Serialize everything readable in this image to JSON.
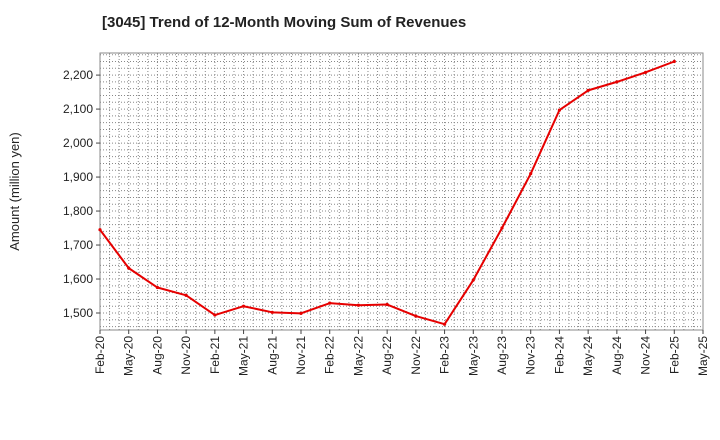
{
  "title": "[3045]  Trend of 12-Month Moving Sum of Revenues",
  "colors": {
    "line": "#e60000",
    "grid": "#888888",
    "plot_border": "#888888"
  },
  "chart_data": {
    "type": "line",
    "title": "[3045]  Trend of 12-Month Moving Sum of Revenues",
    "xlabel": "",
    "ylabel": "Amount (million yen)",
    "ylim": [
      1450,
      2265
    ],
    "yticks": [
      1500,
      1600,
      1700,
      1800,
      1900,
      2000,
      2100,
      2200
    ],
    "ytick_labels": [
      "1,500",
      "1,600",
      "1,700",
      "1,800",
      "1,900",
      "2,000",
      "2,100",
      "2,200"
    ],
    "xtick_labels": [
      "Feb-20",
      "May-20",
      "Aug-20",
      "Nov-20",
      "Feb-21",
      "May-21",
      "Aug-21",
      "Nov-21",
      "Feb-22",
      "May-22",
      "Aug-22",
      "Nov-22",
      "Feb-23",
      "May-23",
      "Aug-23",
      "Nov-23",
      "Feb-24",
      "May-24",
      "Aug-24",
      "Nov-24",
      "Feb-25",
      "May-25"
    ],
    "grid": true,
    "legend": "none",
    "series": [
      {
        "x": [
          "Feb-20",
          "May-20",
          "Aug-20",
          "Nov-20",
          "Feb-21",
          "May-21",
          "Aug-21",
          "Nov-21",
          "Feb-22",
          "May-22",
          "Aug-22",
          "Nov-22",
          "Feb-23",
          "May-23",
          "Aug-23",
          "Nov-23",
          "Feb-24",
          "May-24",
          "Aug-24",
          "Nov-24",
          "Feb-25"
        ],
        "values": [
          1745,
          1632,
          1575,
          1552,
          1494,
          1520,
          1502,
          1499,
          1529,
          1523,
          1525,
          1491,
          1467,
          1597,
          1750,
          1910,
          2097,
          2155,
          2180,
          2208,
          2240
        ]
      }
    ]
  }
}
